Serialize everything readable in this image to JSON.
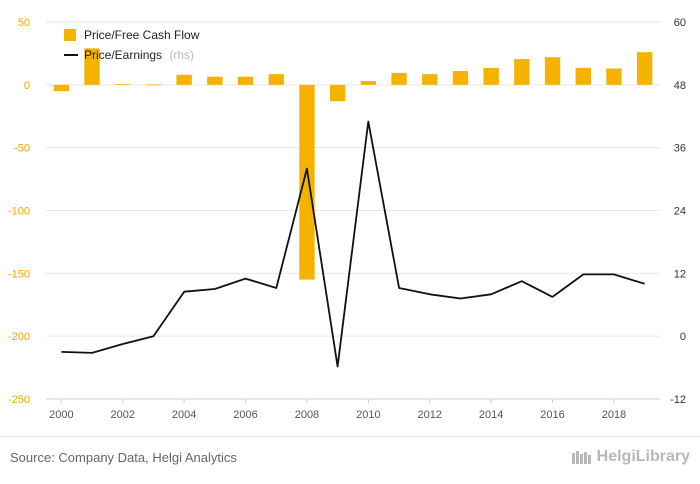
{
  "chart_data": {
    "type": "bar+line",
    "categories": [
      "2000",
      "2001",
      "2002",
      "2003",
      "2004",
      "2005",
      "2006",
      "2007",
      "2008",
      "2009",
      "2010",
      "2011",
      "2012",
      "2013",
      "2014",
      "2015",
      "2016",
      "2017",
      "2018",
      "2019"
    ],
    "x_tick_labels": [
      "2000",
      "2002",
      "2004",
      "2006",
      "2008",
      "2010",
      "2012",
      "2014",
      "2016",
      "2018"
    ],
    "series": [
      {
        "name": "Price/Free Cash Flow",
        "type": "bar",
        "axis": "left",
        "color": "#f5b300",
        "values": [
          -5,
          29,
          0.5,
          0.3,
          8,
          6.5,
          6.5,
          8.5,
          -155,
          -13,
          3,
          9.5,
          8.5,
          11,
          13.5,
          20.5,
          22,
          13.5,
          13,
          26
        ]
      },
      {
        "name": "Price/Earnings",
        "name_suffix": "(rhs)",
        "type": "line",
        "axis": "right",
        "color": "#111111",
        "values": [
          -3,
          -3.2,
          -1.5,
          0,
          8.5,
          9,
          11,
          9.2,
          32,
          -5.8,
          41,
          9.2,
          8,
          7.2,
          8,
          10.5,
          7.5,
          11.8,
          11.8,
          10
        ]
      }
    ],
    "y_left": {
      "min": -250,
      "max": 50,
      "ticks": [
        50,
        0,
        -50,
        -100,
        -150,
        -200,
        -250
      ],
      "color": "#f0a400"
    },
    "y_right": {
      "min": -12,
      "max": 60,
      "ticks": [
        60,
        48,
        36,
        24,
        12,
        0,
        -12
      ]
    },
    "grid": true,
    "legend_position": "top-left"
  },
  "footer": {
    "source": "Source: Company Data, Helgi Analytics",
    "brand": "HelgiLibrary"
  }
}
